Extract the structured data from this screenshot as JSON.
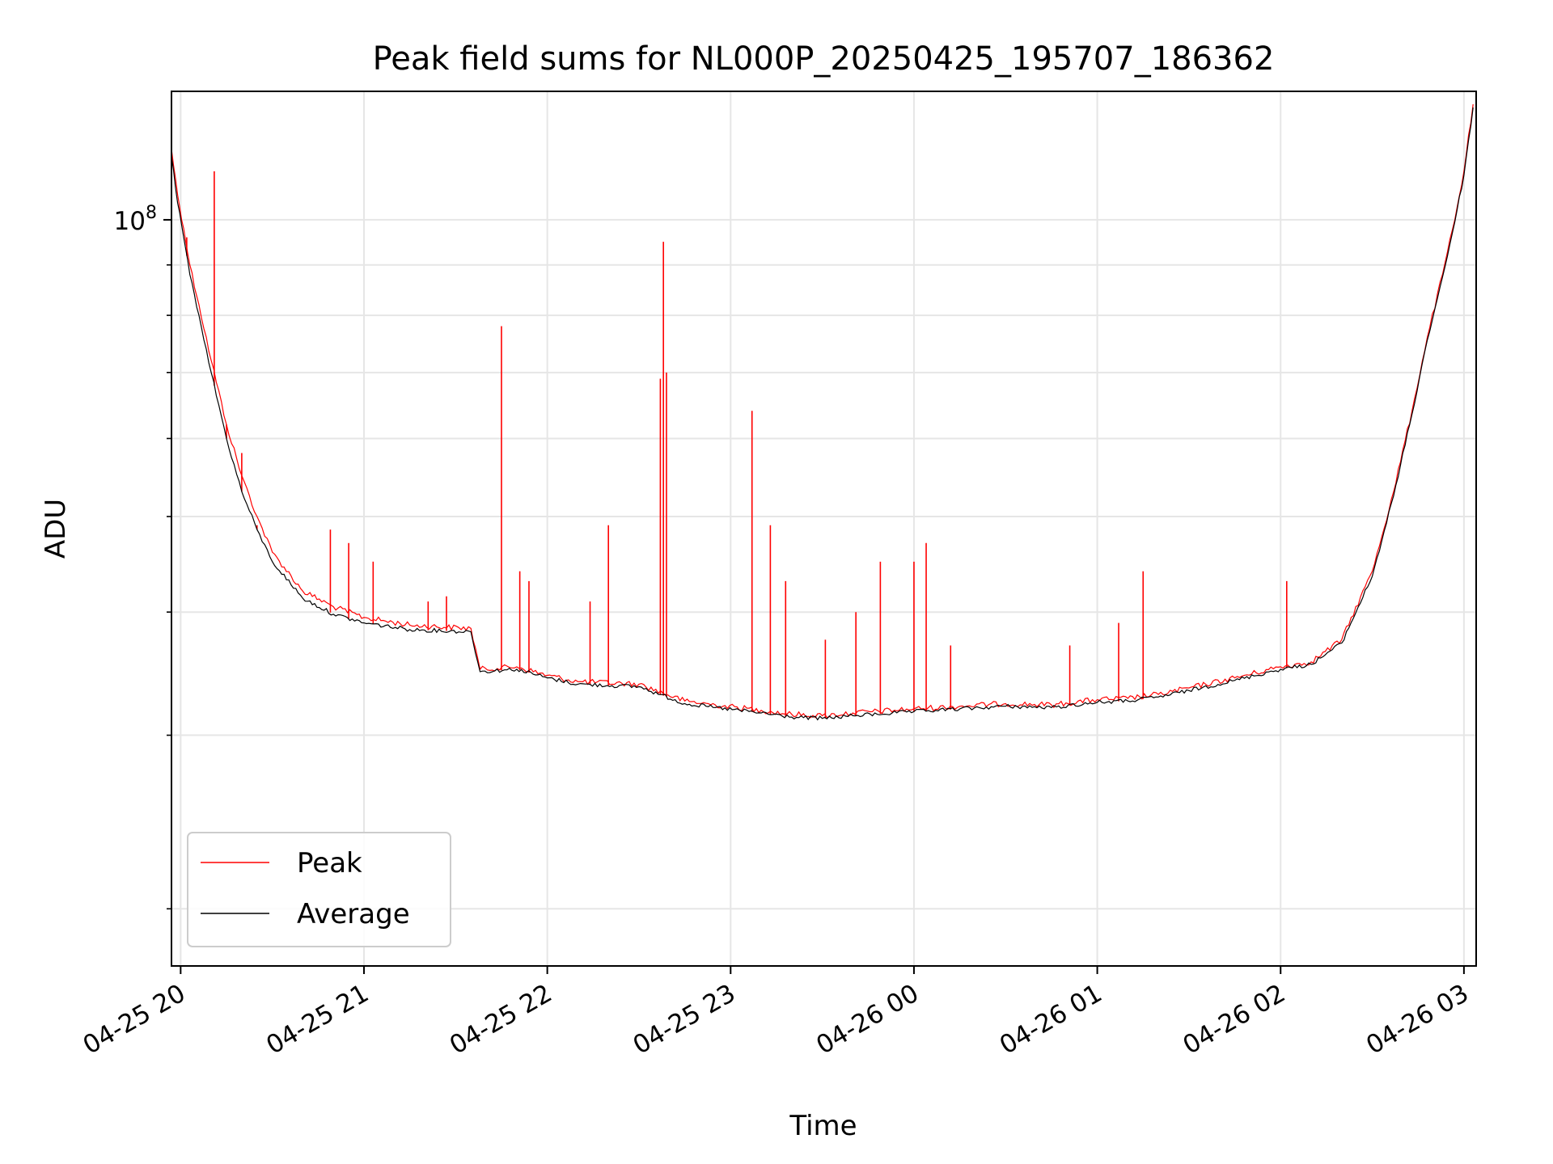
{
  "chart_data": {
    "type": "line",
    "title": "Peak field sums for NL000P_20250425_195707_186362",
    "xlabel": "Time",
    "ylabel": "ADU",
    "yscale": "log",
    "x_ticks": [
      "04-25 20",
      "04-25 21",
      "04-25 22",
      "04-25 23",
      "04-26 00",
      "04-26 01",
      "04-26 02",
      "04-26 03"
    ],
    "y_tick_label": "10^8",
    "grid": true,
    "legend": {
      "placement": "lower-left",
      "entries": [
        "Peak",
        "Average"
      ]
    },
    "xlim": [
      "2025-04-25 19:57",
      "2025-04-26 03:04"
    ],
    "ylim": [
      17500000,
      135000000
    ],
    "series": [
      {
        "name": "Peak",
        "color": "#ff0000",
        "x": [
          "2025-04-25 19:57",
          "2025-04-25 19:59",
          "2025-04-25 20:01",
          "2025-04-25 20:03",
          "2025-04-25 20:06",
          "2025-04-25 20:10",
          "2025-04-25 20:15",
          "2025-04-25 20:20",
          "2025-04-25 20:25",
          "2025-04-25 20:30",
          "2025-04-25 20:40",
          "2025-04-25 20:50",
          "2025-04-25 21:00",
          "2025-04-25 21:15",
          "2025-04-25 21:35",
          "2025-04-25 21:38",
          "2025-04-25 21:50",
          "2025-04-25 22:00",
          "2025-04-25 22:10",
          "2025-04-25 22:30",
          "2025-04-25 22:45",
          "2025-04-25 22:55",
          "2025-04-25 23:10",
          "2025-04-25 23:20",
          "2025-04-25 23:30",
          "2025-04-25 23:40",
          "2025-04-26 00:00",
          "2025-04-26 00:15",
          "2025-04-26 00:30",
          "2025-04-26 00:45",
          "2025-04-26 01:00",
          "2025-04-26 01:10",
          "2025-04-26 01:20",
          "2025-04-26 01:30",
          "2025-04-26 01:45",
          "2025-04-26 02:00",
          "2025-04-26 02:10",
          "2025-04-26 02:20",
          "2025-04-26 02:30",
          "2025-04-26 02:37",
          "2025-04-26 02:43",
          "2025-04-26 02:48",
          "2025-04-26 02:53",
          "2025-04-26 02:57",
          "2025-04-26 03:00",
          "2025-04-26 03:03"
        ],
        "values": [
          118000000,
          106000000,
          98000000,
          90000000,
          82000000,
          72000000,
          62000000,
          55000000,
          50000000,
          46000000,
          42000000,
          40500000,
          39500000,
          38800000,
          38500000,
          35000000,
          35200000,
          34500000,
          34000000,
          33800000,
          32500000,
          32200000,
          31800000,
          31500000,
          31400000,
          31600000,
          31900000,
          32100000,
          32300000,
          32200000,
          32600000,
          32700000,
          33000000,
          33500000,
          34300000,
          35200000,
          35600000,
          37500000,
          44000000,
          53000000,
          64000000,
          76000000,
          88000000,
          100000000,
          112000000,
          131000000
        ],
        "spikes": [
          {
            "x": "2025-04-25 20:02",
            "value": 96000000
          },
          {
            "x": "2025-04-25 20:11",
            "value": 112000000
          },
          {
            "x": "2025-04-25 20:15",
            "value": 62000000
          },
          {
            "x": "2025-04-25 20:20",
            "value": 58000000
          },
          {
            "x": "2025-04-25 20:25",
            "value": 49000000
          },
          {
            "x": "2025-04-25 20:49",
            "value": 48500000
          },
          {
            "x": "2025-04-25 20:55",
            "value": 47000000
          },
          {
            "x": "2025-04-25 21:03",
            "value": 45000000
          },
          {
            "x": "2025-04-25 21:21",
            "value": 41000000
          },
          {
            "x": "2025-04-25 21:27",
            "value": 41500000
          },
          {
            "x": "2025-04-25 21:45",
            "value": 78000000
          },
          {
            "x": "2025-04-25 21:51",
            "value": 44000000
          },
          {
            "x": "2025-04-25 21:54",
            "value": 43000000
          },
          {
            "x": "2025-04-25 22:14",
            "value": 41000000
          },
          {
            "x": "2025-04-25 22:20",
            "value": 49000000
          },
          {
            "x": "2025-04-25 22:37",
            "value": 69000000
          },
          {
            "x": "2025-04-25 22:38",
            "value": 95000000
          },
          {
            "x": "2025-04-25 22:39",
            "value": 70000000
          },
          {
            "x": "2025-04-25 23:07",
            "value": 64000000
          },
          {
            "x": "2025-04-25 23:13",
            "value": 49000000
          },
          {
            "x": "2025-04-25 23:18",
            "value": 43000000
          },
          {
            "x": "2025-04-25 23:31",
            "value": 37500000
          },
          {
            "x": "2025-04-25 23:41",
            "value": 40000000
          },
          {
            "x": "2025-04-25 23:49",
            "value": 45000000
          },
          {
            "x": "2025-04-26 00:00",
            "value": 45000000
          },
          {
            "x": "2025-04-26 00:04",
            "value": 47000000
          },
          {
            "x": "2025-04-26 00:12",
            "value": 37000000
          },
          {
            "x": "2025-04-26 00:51",
            "value": 37000000
          },
          {
            "x": "2025-04-26 01:07",
            "value": 39000000
          },
          {
            "x": "2025-04-26 01:15",
            "value": 44000000
          },
          {
            "x": "2025-04-26 02:02",
            "value": 43000000
          }
        ]
      },
      {
        "name": "Average",
        "color": "#000000",
        "x": [
          "2025-04-25 19:57",
          "2025-04-25 19:59",
          "2025-04-25 20:01",
          "2025-04-25 20:03",
          "2025-04-25 20:06",
          "2025-04-25 20:10",
          "2025-04-25 20:15",
          "2025-04-25 20:20",
          "2025-04-25 20:25",
          "2025-04-25 20:30",
          "2025-04-25 20:40",
          "2025-04-25 20:50",
          "2025-04-25 21:00",
          "2025-04-25 21:15",
          "2025-04-25 21:35",
          "2025-04-25 21:38",
          "2025-04-25 21:50",
          "2025-04-25 22:00",
          "2025-04-25 22:10",
          "2025-04-25 22:30",
          "2025-04-25 22:45",
          "2025-04-25 22:55",
          "2025-04-25 23:10",
          "2025-04-25 23:20",
          "2025-04-25 23:30",
          "2025-04-25 23:40",
          "2025-04-26 00:00",
          "2025-04-26 00:15",
          "2025-04-26 00:30",
          "2025-04-26 00:45",
          "2025-04-26 01:00",
          "2025-04-26 01:10",
          "2025-04-26 01:20",
          "2025-04-26 01:30",
          "2025-04-26 01:45",
          "2025-04-26 02:00",
          "2025-04-26 02:10",
          "2025-04-26 02:20",
          "2025-04-26 02:30",
          "2025-04-26 02:37",
          "2025-04-26 02:43",
          "2025-04-26 02:48",
          "2025-04-26 02:53",
          "2025-04-26 02:57",
          "2025-04-26 03:00",
          "2025-04-26 03:03"
        ],
        "values": [
          116000000,
          104000000,
          96000000,
          88000000,
          80000000,
          70000000,
          60000000,
          53000000,
          48500000,
          45000000,
          41300000,
          39800000,
          39000000,
          38400000,
          38200000,
          34800000,
          35000000,
          34300000,
          33800000,
          33600000,
          32300000,
          32000000,
          31600000,
          31300000,
          31200000,
          31400000,
          31700000,
          31900000,
          32100000,
          32000000,
          32400000,
          32500000,
          32800000,
          33300000,
          34100000,
          35000000,
          35400000,
          37200000,
          43500000,
          52500000,
          63500000,
          75500000,
          87500000,
          99500000,
          111000000,
          130000000
        ]
      }
    ]
  }
}
